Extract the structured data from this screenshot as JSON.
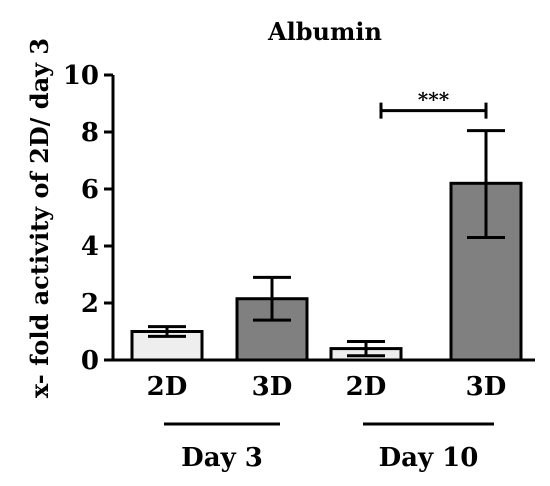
{
  "chart_data": {
    "type": "bar",
    "title": "Albumin",
    "ylabel": "x- fold activity of 2D/ day 3",
    "xlabel": "",
    "ylim": [
      0,
      10
    ],
    "yticks": [
      0,
      2,
      4,
      6,
      8,
      10
    ],
    "categories": [
      "2D",
      "3D",
      "2D",
      "3D"
    ],
    "groups": [
      {
        "label": "Day 3",
        "members": [
          0,
          1
        ]
      },
      {
        "label": "Day 10",
        "members": [
          2,
          3
        ]
      }
    ],
    "values": [
      1.0,
      2.15,
      0.4,
      6.2
    ],
    "errors": [
      {
        "low": 0.83,
        "high": 1.17
      },
      {
        "low": 1.4,
        "high": 2.9
      },
      {
        "low": 0.15,
        "high": 0.65
      },
      {
        "low": 4.3,
        "high": 8.05
      }
    ],
    "bar_colors": [
      "#eeeeee",
      "#808080",
      "#eeeeee",
      "#808080"
    ],
    "significance": {
      "label": "***",
      "from": 2,
      "to": 3,
      "y": 8.75
    }
  }
}
